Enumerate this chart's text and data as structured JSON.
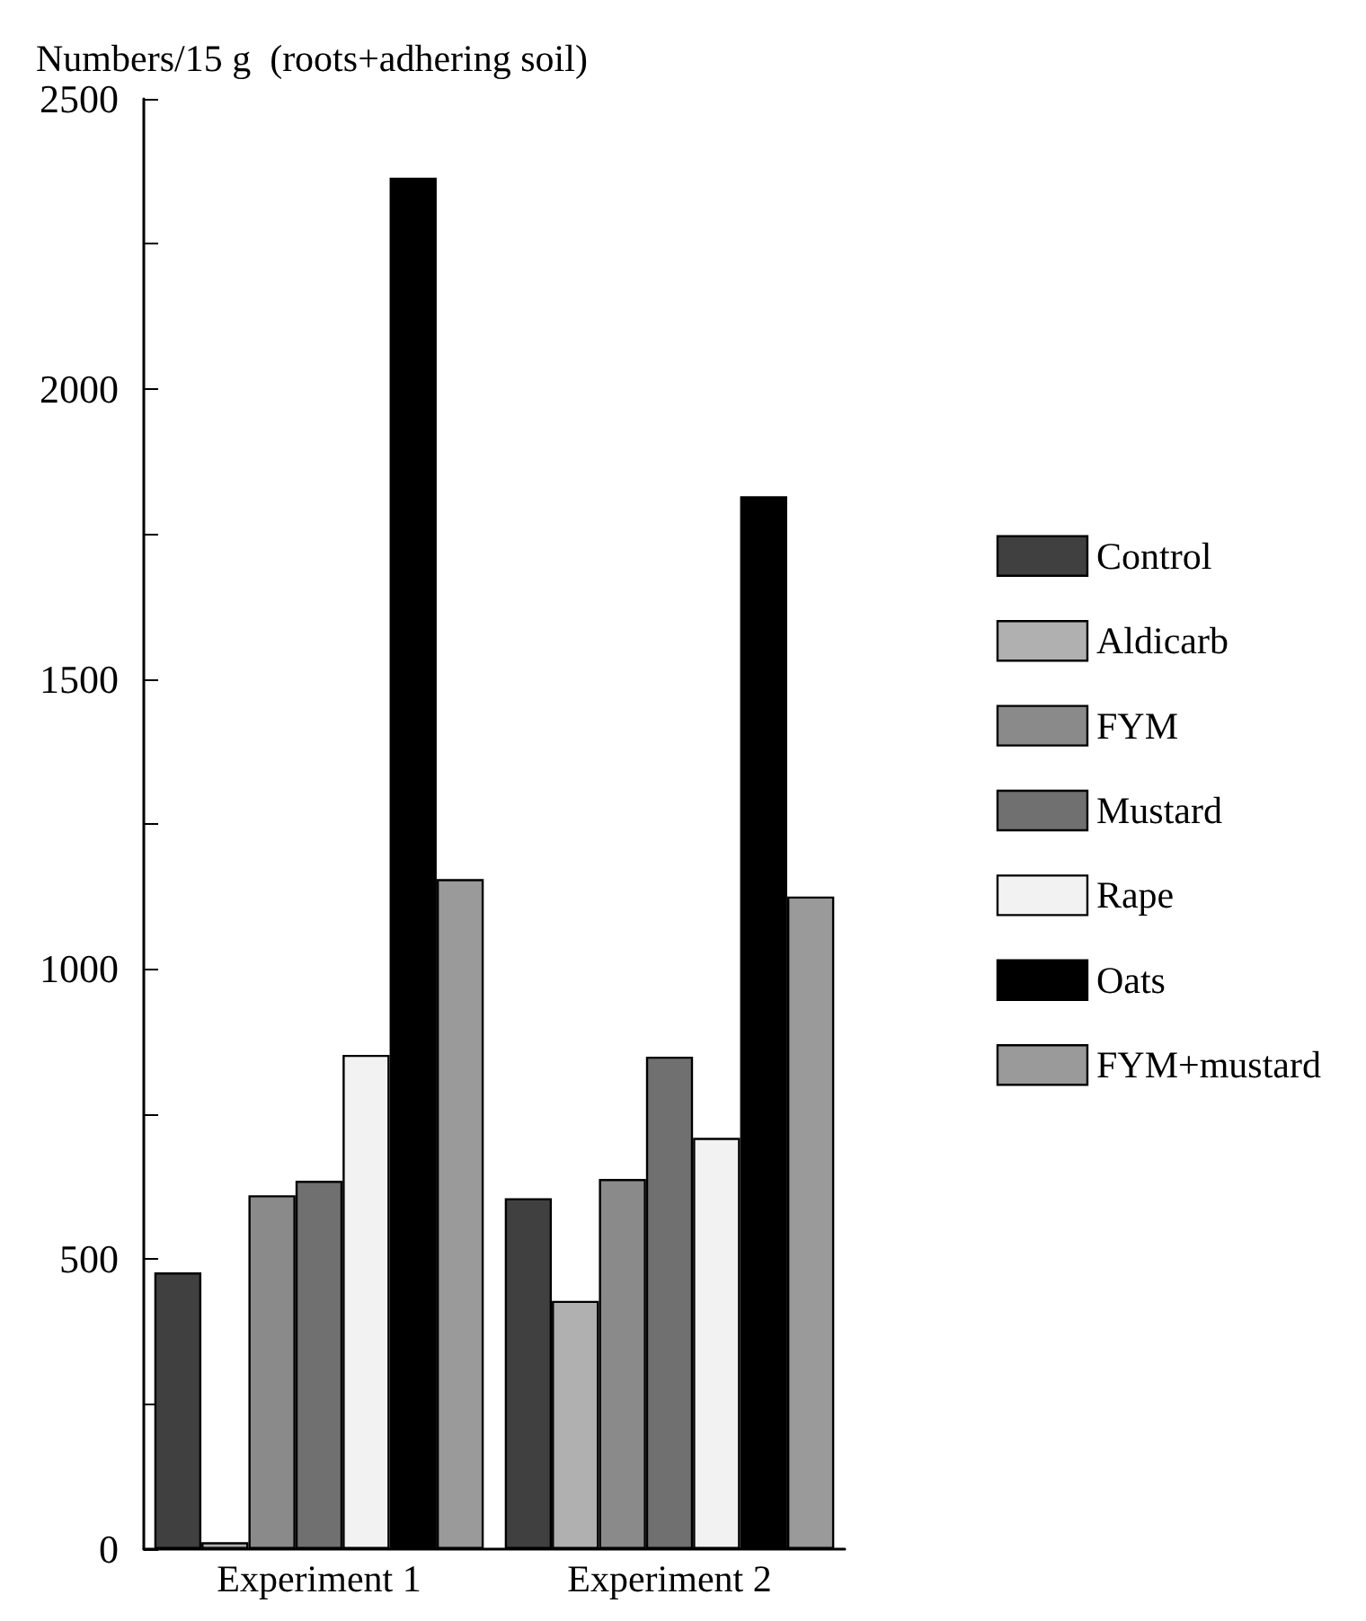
{
  "chart_data": {
    "type": "bar",
    "ylabel": "Numbers/15 g  (roots+adhering soil)",
    "categories": [
      "Experiment 1",
      "Experiment 2"
    ],
    "series": [
      {
        "name": "Control",
        "color": "#404040",
        "values": [
          477,
          605
        ]
      },
      {
        "name": "Aldicarb",
        "color": "#b0b0b0",
        "values": [
          12,
          428
        ]
      },
      {
        "name": "FYM",
        "color": "#8a8a8a",
        "values": [
          610,
          638
        ]
      },
      {
        "name": "Mustard",
        "color": "#707070",
        "values": [
          635,
          849
        ]
      },
      {
        "name": "Rape",
        "color": "#f2f2f2",
        "values": [
          852,
          709
        ]
      },
      {
        "name": "Oats",
        "color": "#000000",
        "values": [
          2364,
          1815
        ]
      },
      {
        "name": "FYM+mustard",
        "color": "#9a9a9a",
        "values": [
          1155,
          1125
        ]
      }
    ],
    "ylim": [
      0,
      2500
    ],
    "yticks": [
      0,
      {
        "value": 250,
        "label": null
      },
      500,
      {
        "value": 750,
        "label": null
      },
      1000,
      {
        "value": 1250,
        "label": null
      },
      1500,
      {
        "value": 1750,
        "label": null
      },
      2000,
      {
        "value": 2250,
        "label": null
      },
      2500
    ],
    "grid": false,
    "legend": "right"
  }
}
